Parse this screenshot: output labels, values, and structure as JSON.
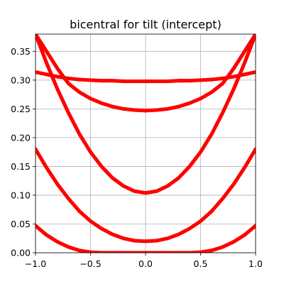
{
  "chart_data": {
    "type": "scatter",
    "title": "bicentral for tilt (intercept)",
    "xlabel": "",
    "ylabel": "",
    "xlim": [
      -1.0,
      1.0
    ],
    "ylim": [
      0.0,
      0.38
    ],
    "grid": true,
    "marker_color": "#ff0000",
    "xticks": [
      -1.0,
      -0.5,
      0.0,
      0.5,
      1.0
    ],
    "xtick_labels": [
      "−1.0",
      "−0.5",
      "0.0",
      "0.5",
      "1.0"
    ],
    "yticks": [
      0.0,
      0.05,
      0.1,
      0.15,
      0.2,
      0.25,
      0.3,
      0.35
    ],
    "ytick_labels": [
      "0.00",
      "0.05",
      "0.10",
      "0.15",
      "0.20",
      "0.25",
      "0.30",
      "0.35"
    ],
    "series": [
      {
        "x": [
          -1.0,
          -0.9,
          -0.8,
          -0.7,
          -0.6,
          -0.5,
          -0.4,
          -0.3,
          -0.2,
          -0.1,
          0.0,
          0.1,
          0.2,
          0.3,
          0.4,
          0.5,
          0.6,
          0.7,
          0.8,
          0.9,
          1.0
        ],
        "y": [
          0.047,
          0.031,
          0.019,
          0.01,
          0.004,
          0.001,
          0.0,
          0.0,
          0.0,
          0.0,
          0.0,
          0.0,
          0.0,
          0.0,
          0.0,
          0.001,
          0.004,
          0.01,
          0.019,
          0.031,
          0.047
        ]
      },
      {
        "x": [
          -1.0,
          -0.9,
          -0.8,
          -0.7,
          -0.6,
          -0.5,
          -0.4,
          -0.3,
          -0.2,
          -0.1,
          0.0,
          0.1,
          0.2,
          0.3,
          0.4,
          0.5,
          0.6,
          0.7,
          0.8,
          0.9,
          1.0
        ],
        "y": [
          0.18,
          0.148,
          0.119,
          0.094,
          0.072,
          0.055,
          0.042,
          0.032,
          0.025,
          0.021,
          0.02,
          0.021,
          0.025,
          0.032,
          0.042,
          0.055,
          0.072,
          0.094,
          0.119,
          0.148,
          0.18
        ]
      },
      {
        "x": [
          -1.0,
          -0.9,
          -0.8,
          -0.7,
          -0.6,
          -0.5,
          -0.4,
          -0.3,
          -0.2,
          -0.1,
          0.0,
          0.1,
          0.2,
          0.3,
          0.4,
          0.5,
          0.6,
          0.7,
          0.8,
          0.9,
          1.0
        ],
        "y": [
          0.38,
          0.33,
          0.284,
          0.243,
          0.206,
          0.175,
          0.15,
          0.13,
          0.116,
          0.107,
          0.104,
          0.107,
          0.116,
          0.13,
          0.15,
          0.175,
          0.206,
          0.243,
          0.284,
          0.33,
          0.38
        ]
      },
      {
        "x": [
          -1.0,
          -0.9,
          -0.8,
          -0.7,
          -0.6,
          -0.5,
          -0.4,
          -0.3,
          -0.2,
          -0.1,
          0.0,
          0.1,
          0.2,
          0.3,
          0.4,
          0.5,
          0.6,
          0.7,
          0.8,
          0.9,
          1.0
        ],
        "y": [
          0.38,
          0.35,
          0.32,
          0.294,
          0.279,
          0.268,
          0.26,
          0.254,
          0.25,
          0.248,
          0.247,
          0.248,
          0.25,
          0.254,
          0.26,
          0.268,
          0.279,
          0.294,
          0.32,
          0.35,
          0.38
        ]
      },
      {
        "x": [
          -1.0,
          -0.9,
          -0.8,
          -0.7,
          -0.6,
          -0.5,
          -0.4,
          -0.3,
          -0.2,
          -0.1,
          0.0,
          0.1,
          0.2,
          0.3,
          0.4,
          0.5,
          0.6,
          0.7,
          0.8,
          0.9,
          1.0
        ],
        "y": [
          0.314,
          0.31,
          0.306,
          0.303,
          0.301,
          0.3,
          0.299,
          0.299,
          0.298,
          0.298,
          0.298,
          0.298,
          0.298,
          0.299,
          0.299,
          0.3,
          0.301,
          0.303,
          0.306,
          0.31,
          0.314
        ]
      }
    ]
  }
}
